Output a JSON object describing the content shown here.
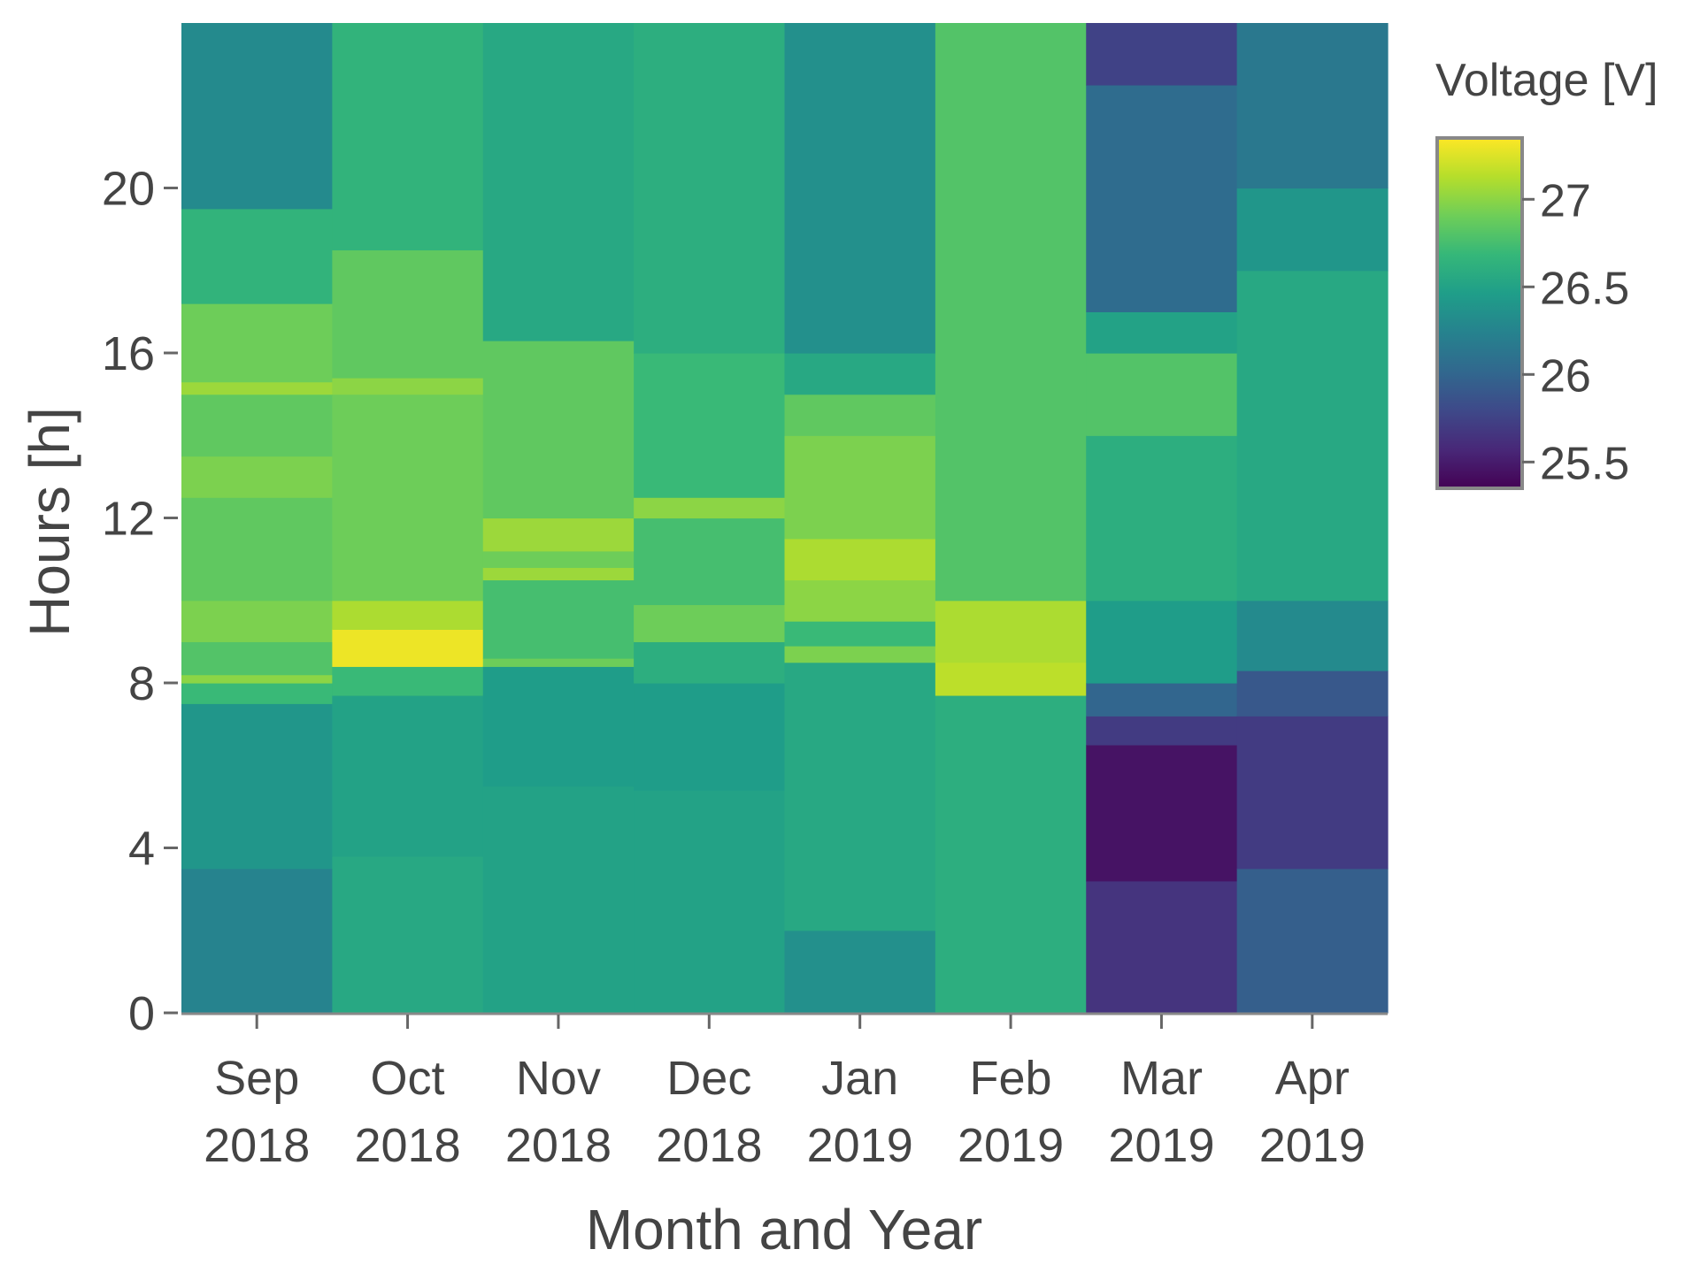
{
  "chart_data": {
    "type": "heatmap",
    "xlabel": "Month and Year",
    "ylabel": "Hours [h]",
    "colorbar_title": "Voltage [V]",
    "categories": [
      {
        "month": "Sep",
        "year": "2018"
      },
      {
        "month": "Oct",
        "year": "2018"
      },
      {
        "month": "Nov",
        "year": "2018"
      },
      {
        "month": "Dec",
        "year": "2018"
      },
      {
        "month": "Jan",
        "year": "2019"
      },
      {
        "month": "Feb",
        "year": "2019"
      },
      {
        "month": "Mar",
        "year": "2019"
      },
      {
        "month": "Apr",
        "year": "2019"
      }
    ],
    "ylim": [
      0,
      24
    ],
    "yticks": [
      0,
      4,
      8,
      12,
      16,
      20
    ],
    "color_range": [
      25.35,
      27.35
    ],
    "colorbar_ticks": [
      25.5,
      26,
      26.5,
      27
    ],
    "colorscale": [
      "#440154",
      "#482878",
      "#3e4989",
      "#31688e",
      "#26828e",
      "#1f9e89",
      "#35b779",
      "#6ece58",
      "#b5de2b",
      "#fde725"
    ],
    "columns": [
      {
        "name": "Sep 2018",
        "bands": [
          {
            "from": 0,
            "to": 3.5,
            "value": 26.25
          },
          {
            "from": 3.5,
            "to": 7.5,
            "value": 26.4
          },
          {
            "from": 7.5,
            "to": 8.0,
            "value": 26.7
          },
          {
            "from": 8.0,
            "to": 8.2,
            "value": 27.0
          },
          {
            "from": 8.2,
            "to": 9.0,
            "value": 26.8
          },
          {
            "from": 9.0,
            "to": 10.0,
            "value": 26.95
          },
          {
            "from": 10.0,
            "to": 12.5,
            "value": 26.85
          },
          {
            "from": 12.5,
            "to": 13.5,
            "value": 26.95
          },
          {
            "from": 13.5,
            "to": 15.0,
            "value": 26.85
          },
          {
            "from": 15.0,
            "to": 15.3,
            "value": 27.05
          },
          {
            "from": 15.3,
            "to": 17.2,
            "value": 26.9
          },
          {
            "from": 17.2,
            "to": 19.5,
            "value": 26.65
          },
          {
            "from": 19.5,
            "to": 24.0,
            "value": 26.3
          }
        ]
      },
      {
        "name": "Oct 2018",
        "bands": [
          {
            "from": 0,
            "to": 3.8,
            "value": 26.55
          },
          {
            "from": 3.8,
            "to": 7.7,
            "value": 26.5
          },
          {
            "from": 7.7,
            "to": 8.4,
            "value": 26.7
          },
          {
            "from": 8.4,
            "to": 9.3,
            "value": 27.3
          },
          {
            "from": 9.3,
            "to": 10.0,
            "value": 27.1
          },
          {
            "from": 10.0,
            "to": 15.0,
            "value": 26.9
          },
          {
            "from": 15.0,
            "to": 15.4,
            "value": 27.0
          },
          {
            "from": 15.4,
            "to": 18.5,
            "value": 26.85
          },
          {
            "from": 18.5,
            "to": 24.0,
            "value": 26.65
          }
        ]
      },
      {
        "name": "Nov 2018",
        "bands": [
          {
            "from": 0,
            "to": 5.5,
            "value": 26.5
          },
          {
            "from": 5.5,
            "to": 8.4,
            "value": 26.45
          },
          {
            "from": 8.4,
            "to": 8.6,
            "value": 26.9
          },
          {
            "from": 8.6,
            "to": 10.5,
            "value": 26.75
          },
          {
            "from": 10.5,
            "to": 10.8,
            "value": 27.05
          },
          {
            "from": 10.8,
            "to": 11.2,
            "value": 26.9
          },
          {
            "from": 11.2,
            "to": 12.0,
            "value": 27.05
          },
          {
            "from": 12.0,
            "to": 16.3,
            "value": 26.85
          },
          {
            "from": 16.3,
            "to": 24.0,
            "value": 26.55
          }
        ]
      },
      {
        "name": "Dec 2018",
        "bands": [
          {
            "from": 0,
            "to": 5.4,
            "value": 26.5
          },
          {
            "from": 5.4,
            "to": 8.0,
            "value": 26.45
          },
          {
            "from": 8.0,
            "to": 9.0,
            "value": 26.6
          },
          {
            "from": 9.0,
            "to": 9.9,
            "value": 26.9
          },
          {
            "from": 9.9,
            "to": 12.0,
            "value": 26.75
          },
          {
            "from": 12.0,
            "to": 12.5,
            "value": 27.0
          },
          {
            "from": 12.5,
            "to": 16.0,
            "value": 26.7
          },
          {
            "from": 16.0,
            "to": 24.0,
            "value": 26.6
          }
        ]
      },
      {
        "name": "Jan 2019",
        "bands": [
          {
            "from": 0,
            "to": 2.0,
            "value": 26.35
          },
          {
            "from": 2.0,
            "to": 8.5,
            "value": 26.55
          },
          {
            "from": 8.5,
            "to": 8.9,
            "value": 26.95
          },
          {
            "from": 8.9,
            "to": 9.5,
            "value": 26.7
          },
          {
            "from": 9.5,
            "to": 10.5,
            "value": 27.0
          },
          {
            "from": 10.5,
            "to": 11.5,
            "value": 27.1
          },
          {
            "from": 11.5,
            "to": 14.0,
            "value": 26.95
          },
          {
            "from": 14.0,
            "to": 15.0,
            "value": 26.85
          },
          {
            "from": 15.0,
            "to": 16.0,
            "value": 26.55
          },
          {
            "from": 16.0,
            "to": 24.0,
            "value": 26.35
          }
        ]
      },
      {
        "name": "Feb 2019",
        "bands": [
          {
            "from": 0,
            "to": 7.7,
            "value": 26.6
          },
          {
            "from": 7.7,
            "to": 8.5,
            "value": 27.15
          },
          {
            "from": 8.5,
            "to": 10.0,
            "value": 27.1
          },
          {
            "from": 10.0,
            "to": 24.0,
            "value": 26.8
          }
        ]
      },
      {
        "name": "Mar 2019",
        "bands": [
          {
            "from": 0,
            "to": 3.2,
            "value": 25.65
          },
          {
            "from": 3.2,
            "to": 6.5,
            "value": 25.45
          },
          {
            "from": 6.5,
            "to": 7.2,
            "value": 25.7
          },
          {
            "from": 7.2,
            "to": 8.0,
            "value": 26.0
          },
          {
            "from": 8.0,
            "to": 10.0,
            "value": 26.45
          },
          {
            "from": 10.0,
            "to": 14.0,
            "value": 26.6
          },
          {
            "from": 14.0,
            "to": 16.0,
            "value": 26.8
          },
          {
            "from": 16.0,
            "to": 17.0,
            "value": 26.5
          },
          {
            "from": 17.0,
            "to": 22.5,
            "value": 26.05
          },
          {
            "from": 22.5,
            "to": 24.0,
            "value": 25.75
          }
        ]
      },
      {
        "name": "Apr 2019",
        "bands": [
          {
            "from": 0,
            "to": 3.5,
            "value": 25.95
          },
          {
            "from": 3.5,
            "to": 7.2,
            "value": 25.7
          },
          {
            "from": 7.2,
            "to": 8.3,
            "value": 25.9
          },
          {
            "from": 8.3,
            "to": 10.0,
            "value": 26.3
          },
          {
            "from": 10.0,
            "to": 18.0,
            "value": 26.55
          },
          {
            "from": 18.0,
            "to": 20.0,
            "value": 26.4
          },
          {
            "from": 20.0,
            "to": 24.0,
            "value": 26.15
          }
        ]
      }
    ]
  }
}
